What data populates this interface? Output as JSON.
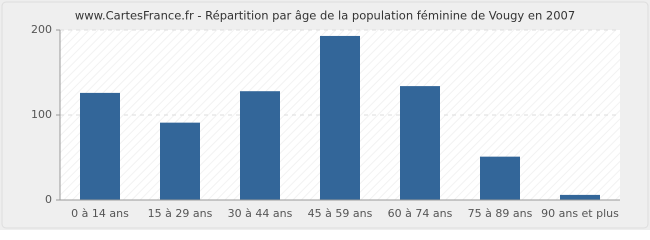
{
  "chart_data": {
    "type": "bar",
    "title": "www.CartesFrance.fr - Répartition par âge de la population féminine de Vougy en 2007",
    "categories": [
      "0 à 14 ans",
      "15 à 29 ans",
      "30 à 44 ans",
      "45 à 59 ans",
      "60 à 74 ans",
      "75 à 89 ans",
      "90 ans et plus"
    ],
    "values": [
      126,
      91,
      128,
      193,
      134,
      51,
      6
    ],
    "color": "#336699",
    "ylim": [
      0,
      200
    ],
    "yticks": [
      0,
      100,
      200
    ],
    "grid": true
  }
}
